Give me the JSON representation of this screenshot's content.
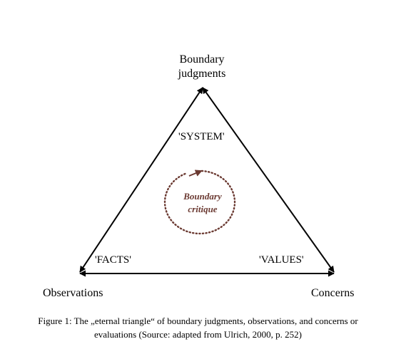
{
  "diagram": {
    "nodes": {
      "top_line1": "Boundary",
      "top_line2": "judgments",
      "left": "Observations",
      "right": "Concerns"
    },
    "edges": {
      "left": "'SYSTEM'",
      "bottom_left": "'FACTS'",
      "bottom_right": "'VALUES'"
    },
    "center": {
      "line1": "Boundary",
      "line2": "critique"
    },
    "colors": {
      "lines": "#000000",
      "critique": "#6b3a32"
    }
  },
  "caption": {
    "line1": "Figure 1: The „eternal triangle“ of boundary judgments, observations, and concerns or",
    "line2": "evaluations (Source: adapted from Ulrich, 2000, p. 252)"
  }
}
